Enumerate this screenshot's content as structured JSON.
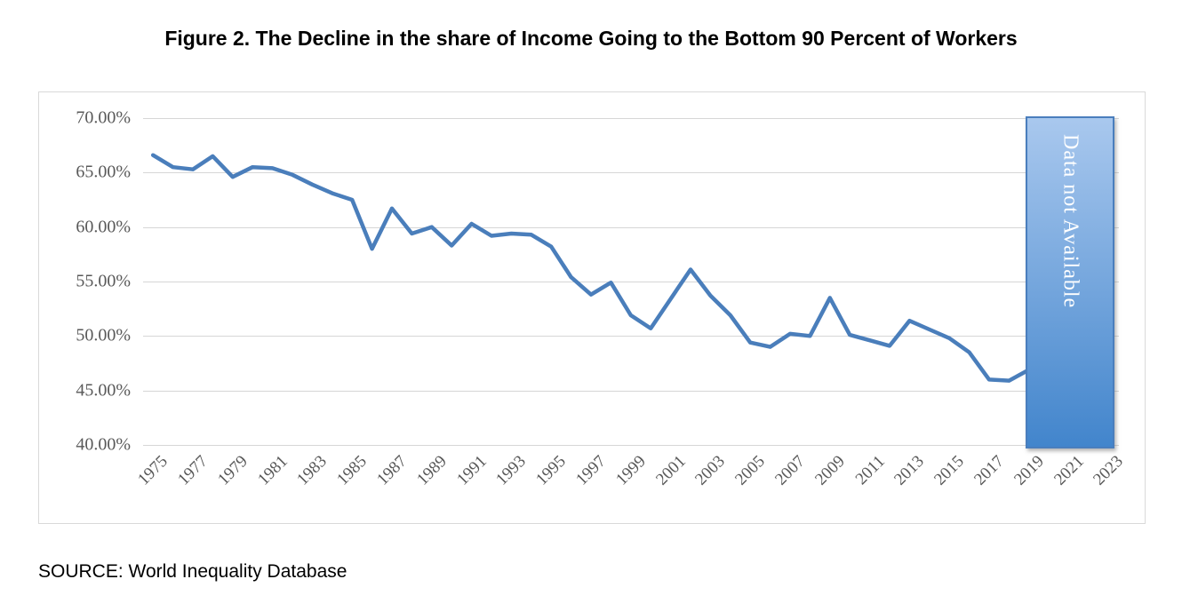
{
  "title": "Figure 2. The Decline in the share of Income Going to the Bottom 90 Percent of Workers",
  "source": "SOURCE: World Inequality Database",
  "overlay": {
    "label": "Data not Available",
    "gradient_top": "#a9c8ee",
    "gradient_bottom": "#4285cc",
    "border_color": "#4a7ebd",
    "covers_years": "2020-2023"
  },
  "chart_data": {
    "type": "line",
    "title": "Figure 2. The Decline in the share of Income Going to the Bottom 90 Percent of Workers",
    "xlabel": "",
    "ylabel": "",
    "ylim": [
      40,
      70
    ],
    "grid": true,
    "legend": "none",
    "line_color": "#4a7ebb",
    "y_ticks": [
      "70.00%",
      "65.00%",
      "60.00%",
      "55.00%",
      "50.00%",
      "45.00%",
      "40.00%"
    ],
    "y_tick_values": [
      70,
      65,
      60,
      55,
      50,
      45,
      40
    ],
    "x_tick_labels": [
      "1975",
      "1977",
      "1979",
      "1981",
      "1983",
      "1985",
      "1987",
      "1989",
      "1991",
      "1993",
      "1995",
      "1997",
      "1999",
      "2001",
      "2003",
      "2005",
      "2007",
      "2009",
      "2011",
      "2013",
      "2015",
      "2017",
      "2019",
      "2021",
      "2023"
    ],
    "x_category_range": [
      1975,
      2023
    ],
    "x": [
      1975,
      1976,
      1977,
      1978,
      1979,
      1980,
      1981,
      1982,
      1983,
      1984,
      1985,
      1986,
      1987,
      1988,
      1989,
      1990,
      1991,
      1992,
      1993,
      1994,
      1995,
      1996,
      1997,
      1998,
      1999,
      2000,
      2001,
      2002,
      2003,
      2004,
      2005,
      2006,
      2007,
      2008,
      2009,
      2010,
      2011,
      2012,
      2013,
      2014,
      2015,
      2016,
      2017,
      2018,
      2019
    ],
    "values": [
      66.6,
      65.5,
      65.3,
      66.5,
      64.6,
      65.5,
      65.4,
      64.8,
      63.9,
      63.1,
      62.5,
      58.0,
      61.7,
      59.4,
      60.0,
      58.3,
      60.3,
      59.2,
      59.4,
      59.3,
      58.2,
      55.4,
      53.8,
      54.9,
      51.9,
      50.7,
      53.4,
      56.1,
      53.7,
      51.9,
      49.4,
      49.0,
      50.2,
      50.0,
      53.5,
      50.1,
      49.6,
      49.1,
      51.4,
      50.6,
      49.8,
      48.5,
      46.0,
      45.9,
      46.9
    ],
    "annotation": "Data not Available (2020-2023)"
  }
}
